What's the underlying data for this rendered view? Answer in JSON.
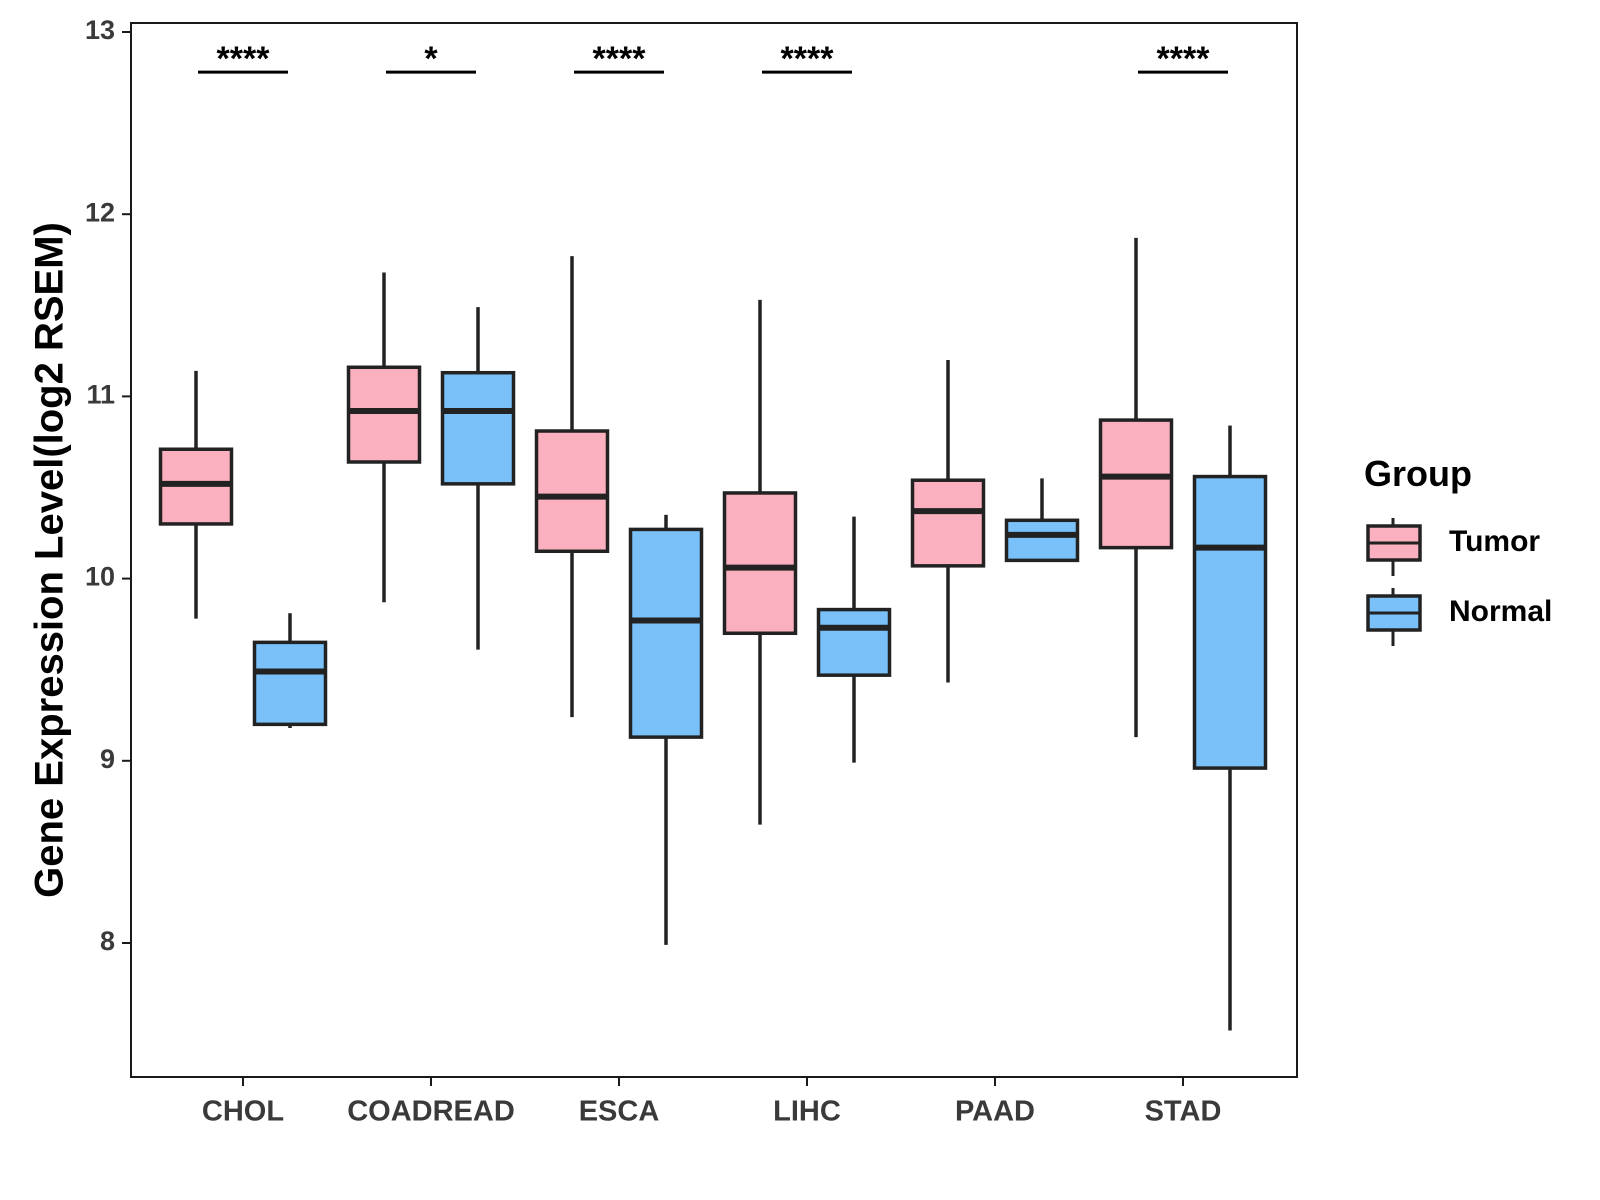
{
  "chart_data": {
    "type": "boxplot",
    "title": "",
    "xlabel": "",
    "ylabel": "Gene Expression Level(log2 RSEM)",
    "ylim": [
      7.4,
      13.1
    ],
    "y_ticks": [
      8,
      9,
      10,
      11,
      12,
      13
    ],
    "categories": [
      "CHOL",
      "COADREAD",
      "ESCA",
      "LIHC",
      "PAAD",
      "STAD"
    ],
    "legend": {
      "title": "Group",
      "position": "right",
      "entries": [
        {
          "name": "Tumor",
          "color": "#FBB0C0"
        },
        {
          "name": "Normal",
          "color": "#79C1F8"
        }
      ]
    },
    "series": [
      {
        "name": "Tumor",
        "color": "#FBB0C0",
        "boxes": [
          {
            "min": 9.78,
            "q1": 10.3,
            "median": 10.52,
            "q3": 10.71,
            "max": 11.14
          },
          {
            "min": 9.87,
            "q1": 10.64,
            "median": 10.92,
            "q3": 11.16,
            "max": 11.68
          },
          {
            "min": 9.24,
            "q1": 10.15,
            "median": 10.45,
            "q3": 10.81,
            "max": 11.77
          },
          {
            "min": 8.65,
            "q1": 9.7,
            "median": 10.06,
            "q3": 10.47,
            "max": 11.53
          },
          {
            "min": 9.43,
            "q1": 10.07,
            "median": 10.37,
            "q3": 10.54,
            "max": 11.2
          },
          {
            "min": 9.13,
            "q1": 10.17,
            "median": 10.56,
            "q3": 10.87,
            "max": 11.87
          }
        ]
      },
      {
        "name": "Normal",
        "color": "#79C1F8",
        "boxes": [
          {
            "min": 9.18,
            "q1": 9.2,
            "median": 9.49,
            "q3": 9.65,
            "max": 9.81
          },
          {
            "min": 9.61,
            "q1": 10.52,
            "median": 10.92,
            "q3": 11.13,
            "max": 11.49
          },
          {
            "min": 7.99,
            "q1": 9.13,
            "median": 9.77,
            "q3": 10.27,
            "max": 10.35
          },
          {
            "min": 8.99,
            "q1": 9.47,
            "median": 9.73,
            "q3": 9.83,
            "max": 10.34
          },
          {
            "min": 10.1,
            "q1": 10.1,
            "median": 10.24,
            "q3": 10.32,
            "max": 10.55
          },
          {
            "min": 7.52,
            "q1": 8.96,
            "median": 10.17,
            "q3": 10.56,
            "max": 10.84
          }
        ]
      }
    ],
    "significance": [
      "****",
      "*",
      "****",
      "****",
      "",
      "****"
    ],
    "significance_y": 12.78
  }
}
